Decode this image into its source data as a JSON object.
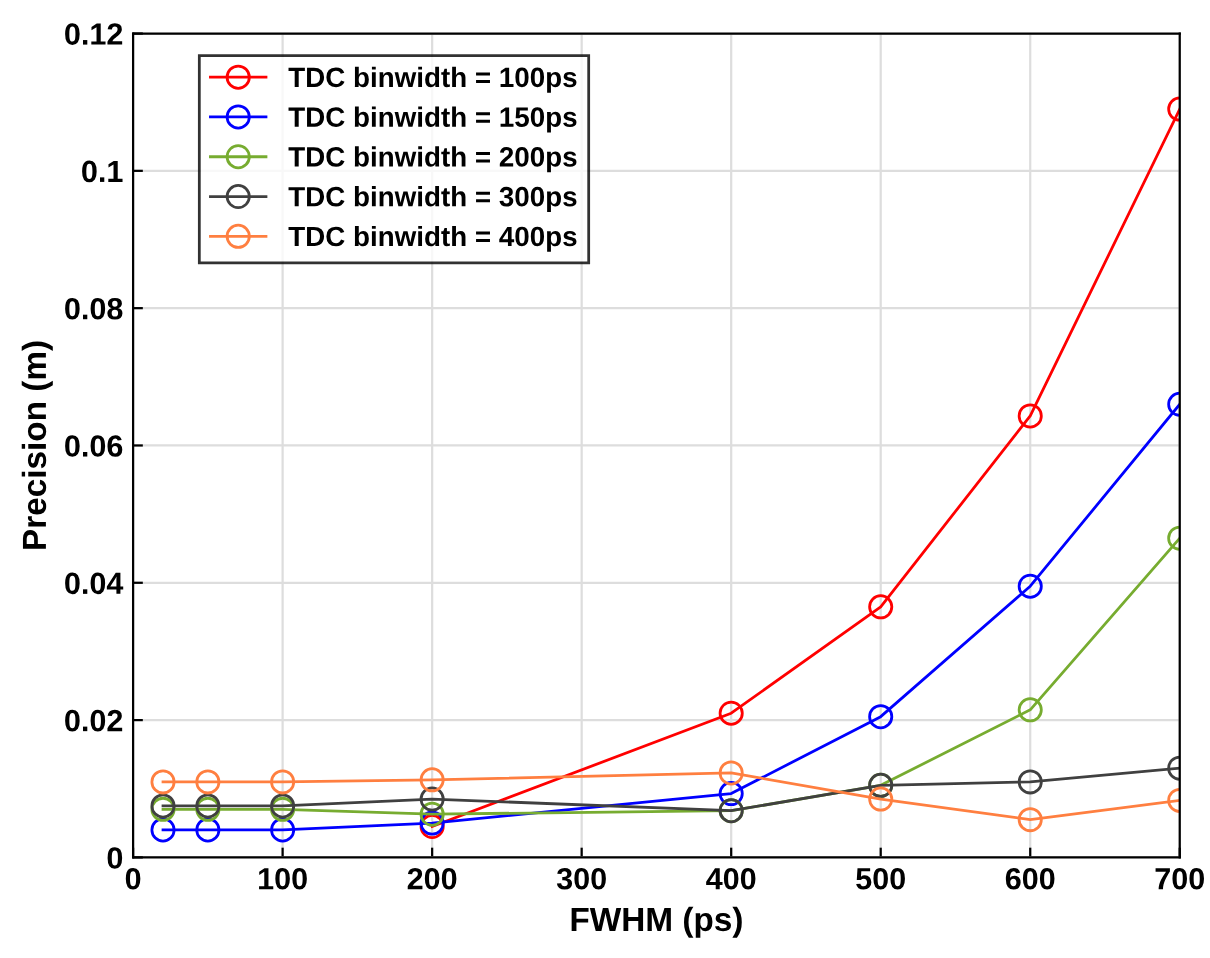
{
  "chart_data": {
    "type": "line",
    "xlabel": "FWHM (ps)",
    "ylabel": "Precision (m)",
    "x": [
      20,
      50,
      100,
      200,
      400,
      500,
      600,
      700
    ],
    "series": [
      {
        "name": "TDC binwidth = 100ps",
        "color": "#ff0000",
        "values": [
          null,
          null,
          null,
          0.0045,
          0.021,
          0.0365,
          0.0643,
          0.109
        ]
      },
      {
        "name": "TDC binwidth = 150ps",
        "color": "#0000ff",
        "values": [
          0.004,
          0.004,
          0.004,
          0.005,
          0.0093,
          0.0205,
          0.0395,
          0.066
        ]
      },
      {
        "name": "TDC binwidth = 200ps",
        "color": "#77ac30",
        "values": [
          0.007,
          0.007,
          0.007,
          0.0063,
          0.0068,
          0.0105,
          0.0215,
          0.0465
        ]
      },
      {
        "name": "TDC binwidth = 300ps",
        "color": "#404040",
        "values": [
          0.0075,
          0.0075,
          0.0075,
          0.0085,
          0.0068,
          0.0105,
          0.011,
          0.013
        ]
      },
      {
        "name": "TDC binwidth = 400ps",
        "color": "#ff7f40",
        "values": [
          0.011,
          0.011,
          0.011,
          0.0113,
          0.0123,
          0.0085,
          0.0055,
          0.0083
        ]
      }
    ],
    "xlim": [
      0,
      700
    ],
    "xticks": [
      0,
      100,
      200,
      300,
      400,
      500,
      600,
      700
    ],
    "ylim": [
      0,
      0.12
    ],
    "yticks": [
      0,
      0.02,
      0.04,
      0.06,
      0.08,
      0.1,
      0.12
    ],
    "grid": true,
    "legend": "top left",
    "marker": "circle",
    "line_style": "solid"
  }
}
